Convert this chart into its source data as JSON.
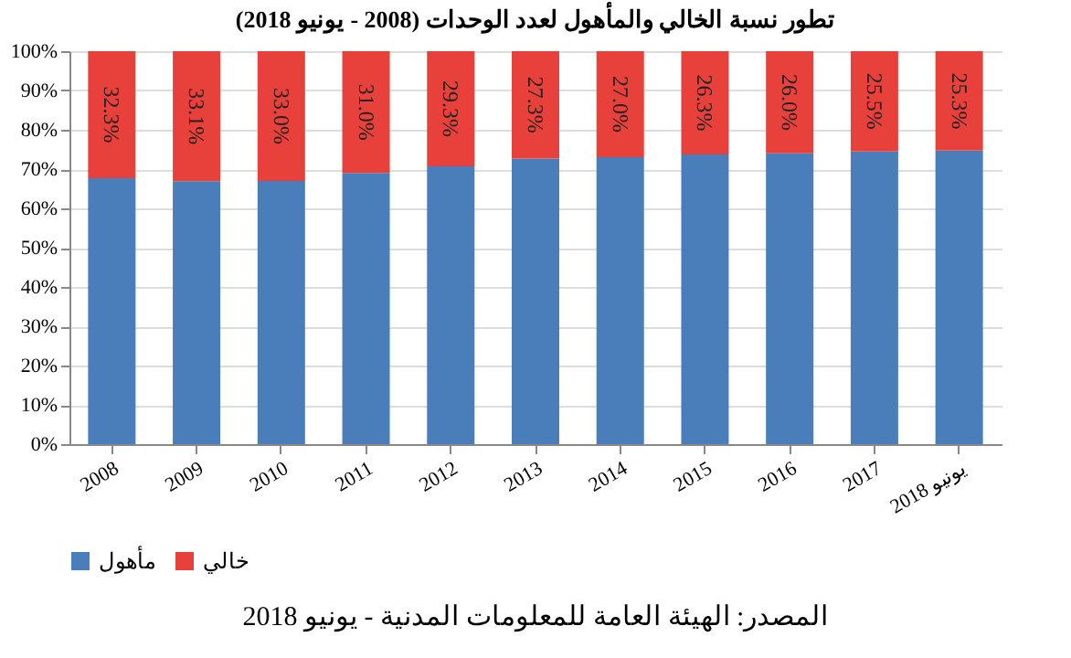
{
  "chart_data": {
    "type": "bar",
    "stacked": true,
    "title": "تطور نسبة الخالي والمأهول لعدد الوحدات (2008 - يونيو 2018)",
    "categories": [
      "2008",
      "2009",
      "2010",
      "2011",
      "2012",
      "2013",
      "2014",
      "2015",
      "2016",
      "2017",
      "يونيو 2018"
    ],
    "series": [
      {
        "name": "مأهول",
        "color": "#4a7ebb",
        "values": [
          67.7,
          66.9,
          67.0,
          69.0,
          70.7,
          72.7,
          73.0,
          73.7,
          74.0,
          74.5,
          74.7
        ]
      },
      {
        "name": "خالي",
        "color": "#e8413b",
        "values": [
          32.3,
          33.1,
          33.0,
          31.0,
          29.3,
          27.3,
          27.0,
          26.3,
          26.0,
          25.5,
          25.3
        ],
        "value_labels": [
          "32.3%",
          "33.1%",
          "33.0%",
          "31.0%",
          "29.3%",
          "27.3%",
          "27.0%",
          "26.3%",
          "26.0%",
          "25.5%",
          "25.3%"
        ]
      }
    ],
    "ylim": [
      0,
      100
    ],
    "yticks": [
      {
        "value": 0,
        "label": "0%"
      },
      {
        "value": 10,
        "label": "10%"
      },
      {
        "value": 20,
        "label": "20%"
      },
      {
        "value": 30,
        "label": "30%"
      },
      {
        "value": 40,
        "label": "40%"
      },
      {
        "value": 50,
        "label": "50%"
      },
      {
        "value": 60,
        "label": "60%"
      },
      {
        "value": 70,
        "label": "70%"
      },
      {
        "value": 80,
        "label": "80%"
      },
      {
        "value": 90,
        "label": "90%"
      },
      {
        "value": 100,
        "label": "100%"
      }
    ],
    "grid": "y",
    "legend": "bottom",
    "annotations": [
      "المصدر: الهيئة العامة للمعلومات المدنية - يونيو 2018"
    ]
  }
}
